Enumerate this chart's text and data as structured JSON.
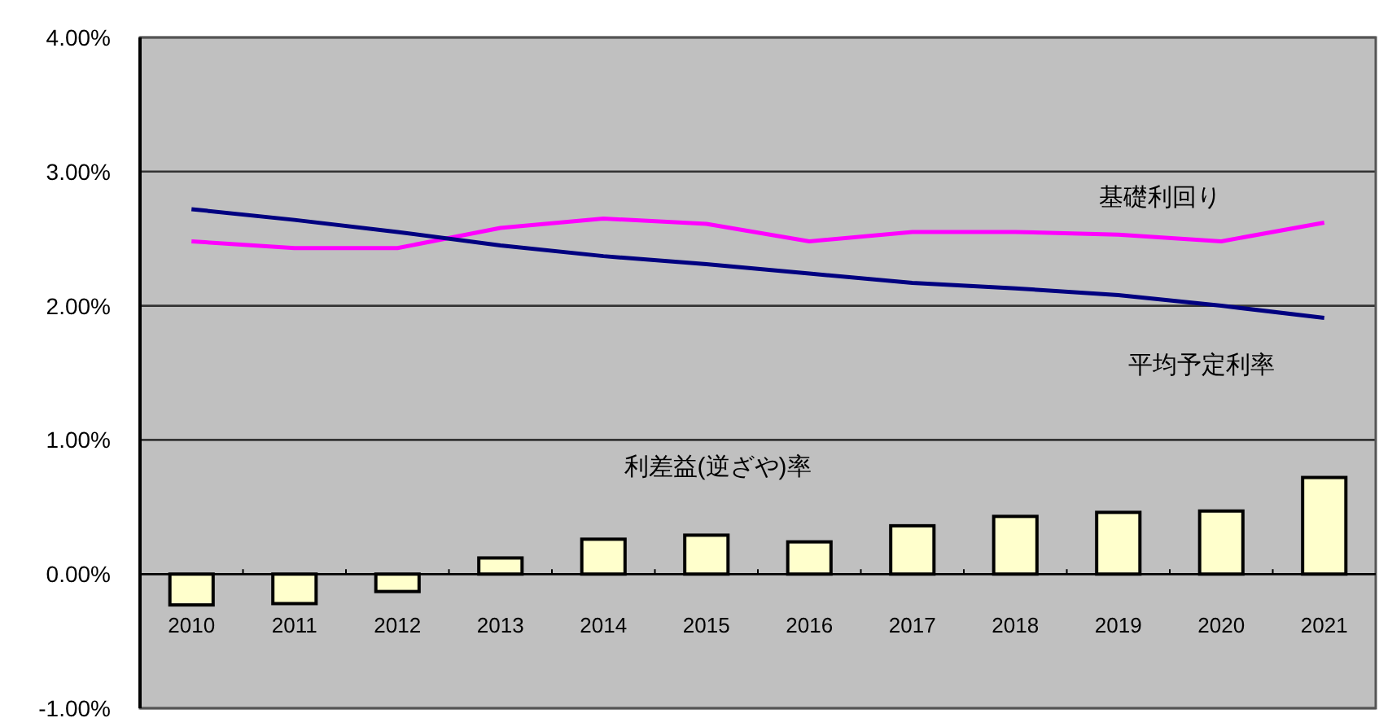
{
  "chart_data": {
    "type": "bar",
    "categories": [
      "2010",
      "2011",
      "2012",
      "2013",
      "2014",
      "2015",
      "2016",
      "2017",
      "2018",
      "2019",
      "2020",
      "2021"
    ],
    "series": [
      {
        "name": "利差益(逆ざや)率",
        "color": "#ffffcc",
        "values": [
          -0.23,
          -0.22,
          -0.13,
          0.12,
          0.26,
          0.29,
          0.24,
          0.36,
          0.43,
          0.46,
          0.47,
          0.72
        ]
      },
      {
        "name": "基礎利回り",
        "type": "line",
        "color": "#ff00ff",
        "values": [
          2.48,
          2.43,
          2.43,
          2.58,
          2.65,
          2.61,
          2.48,
          2.55,
          2.55,
          2.53,
          2.48,
          2.62
        ]
      },
      {
        "name": "平均予定利率",
        "type": "line",
        "color": "#000080",
        "values": [
          2.72,
          2.64,
          2.55,
          2.45,
          2.37,
          2.31,
          2.24,
          2.17,
          2.13,
          2.08,
          2.0,
          1.91
        ]
      }
    ],
    "ylim": [
      -1,
      4
    ],
    "yticks": [
      {
        "value": -1,
        "label": "-1.00%"
      },
      {
        "value": 0,
        "label": "0.00%"
      },
      {
        "value": 1,
        "label": "1.00%"
      },
      {
        "value": 2,
        "label": "2.00%"
      },
      {
        "value": 3,
        "label": "3.00%"
      },
      {
        "value": 4,
        "label": "4.00%"
      }
    ],
    "grid": "y",
    "legend": false,
    "marker": "none",
    "line_style": "solid"
  }
}
